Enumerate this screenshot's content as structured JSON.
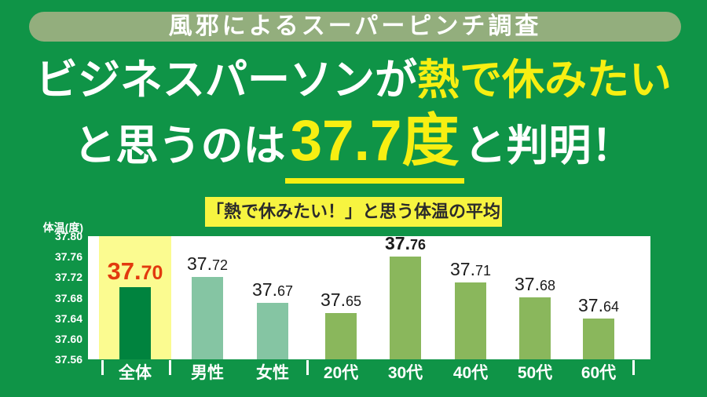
{
  "colors": {
    "background": "#0f9447",
    "banner_pill": "#93ae7d",
    "accent_yellow": "#f7ef12",
    "title_box_yellow": "#f7f440",
    "highlight_column": "#fbfb90",
    "bar_total": "#00833e",
    "bar_gender": "#85c5a3",
    "bar_age": "#8ab75c",
    "value_red": "#e23a0e",
    "value_black": "#1b1b1b",
    "plot_background": "#ffffff"
  },
  "banner": {
    "title": "風邪によるスーパーピンチ調査"
  },
  "headline": {
    "line1_white": "ビジネスパーソンが",
    "line1_yellow": "熱で休みたい",
    "line2_prefix": "と思うのは",
    "line2_value": "37.7度",
    "line2_suffix": "と判明！"
  },
  "chart_data": {
    "type": "bar",
    "title": "「熱で休みたい！」と思う体温の平均",
    "ylabel": "体温(度)",
    "categories": [
      "全体",
      "男性",
      "女性",
      "20代",
      "30代",
      "40代",
      "50代",
      "60代"
    ],
    "values": [
      37.7,
      37.72,
      37.67,
      37.65,
      37.76,
      37.71,
      37.68,
      37.64
    ],
    "value_labels": [
      [
        "37.",
        "70"
      ],
      [
        "37.",
        "72"
      ],
      [
        "37.",
        "67"
      ],
      [
        "37.",
        "65"
      ],
      [
        "37.",
        "76"
      ],
      [
        "37.",
        "71"
      ],
      [
        "37.",
        "68"
      ],
      [
        "37.",
        "64"
      ]
    ],
    "emphasis": [
      "red",
      "normal",
      "normal",
      "normal",
      "bold",
      "normal",
      "normal",
      "normal"
    ],
    "groups": [
      "total",
      "gender",
      "gender",
      "age",
      "age",
      "age",
      "age",
      "age"
    ],
    "highlighted_category": "全体",
    "ylim": [
      37.56,
      37.8
    ],
    "y_ticks": [
      "37.80",
      "37.76",
      "37.72",
      "37.68",
      "37.64",
      "37.60",
      "37.56"
    ],
    "grid": false,
    "legend": false
  }
}
